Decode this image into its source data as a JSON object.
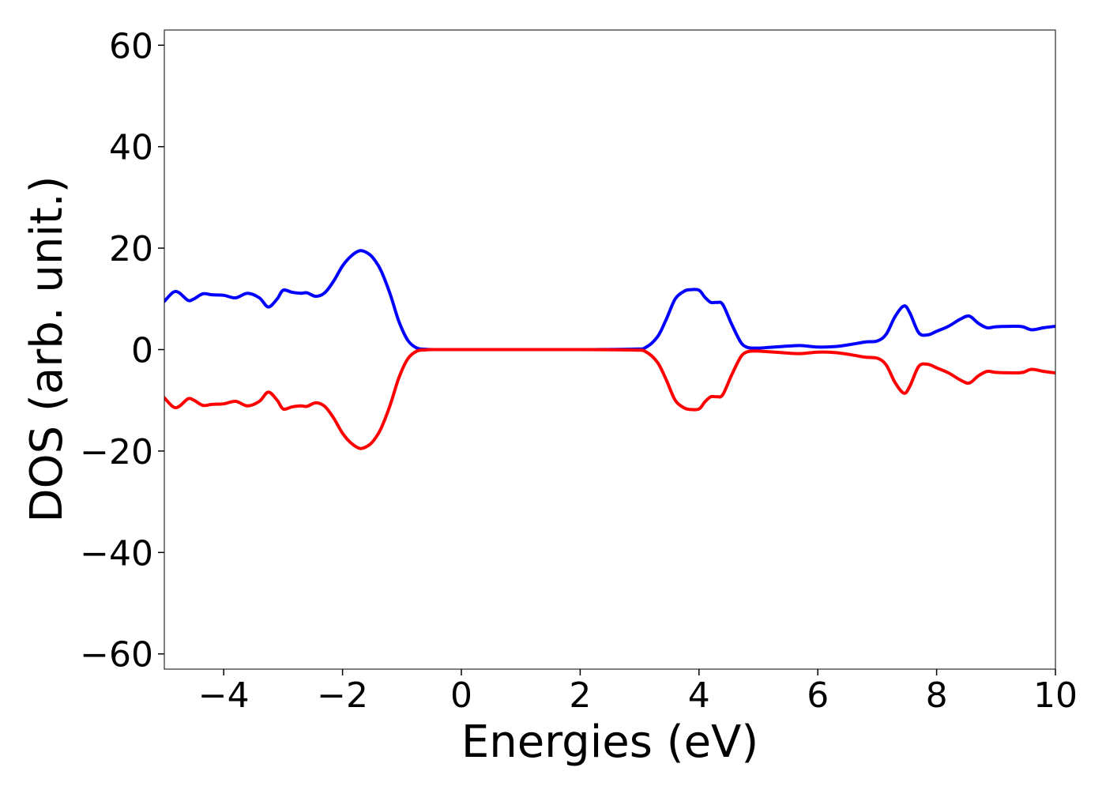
{
  "chart_data": {
    "type": "line",
    "title": "",
    "xlabel": "Energies (eV)",
    "ylabel": "DOS (arb. unit.)",
    "xlim": [
      -5,
      10
    ],
    "ylim": [
      -63,
      63
    ],
    "xticks": [
      -4,
      -2,
      0,
      2,
      4,
      6,
      8,
      10
    ],
    "yticks": [
      -60,
      -40,
      -20,
      0,
      20,
      40,
      60
    ],
    "xtick_labels": [
      "−4",
      "−2",
      "0",
      "2",
      "4",
      "6",
      "8",
      "10"
    ],
    "ytick_labels": [
      "−60",
      "−40",
      "−20",
      "0",
      "20",
      "40",
      "60"
    ],
    "grid": false,
    "legend": "none",
    "series": [
      {
        "color": "#0000ff",
        "x": [
          -5.0,
          -4.85,
          -4.75,
          -4.6,
          -4.5,
          -4.35,
          -4.2,
          -4.0,
          -3.8,
          -3.6,
          -3.4,
          -3.25,
          -3.1,
          -3.0,
          -2.85,
          -2.7,
          -2.6,
          -2.45,
          -2.3,
          -2.15,
          -2.0,
          -1.85,
          -1.7,
          -1.55,
          -1.45,
          -1.35,
          -1.2,
          -1.05,
          -0.9,
          -0.75,
          -0.6,
          -0.45,
          0.0,
          1.0,
          2.0,
          2.9,
          3.1,
          3.3,
          3.45,
          3.6,
          3.75,
          3.85,
          4.0,
          4.1,
          4.2,
          4.3,
          4.4,
          4.55,
          4.7,
          4.8,
          4.9,
          5.0,
          5.15,
          5.4,
          5.7,
          6.0,
          6.3,
          6.55,
          6.8,
          7.0,
          7.15,
          7.3,
          7.45,
          7.55,
          7.7,
          7.85,
          8.0,
          8.2,
          8.4,
          8.55,
          8.7,
          8.85,
          9.0,
          9.3,
          9.45,
          9.6,
          9.8,
          10.0
        ],
        "y": [
          9.5,
          11.3,
          11.2,
          9.7,
          10.0,
          11.0,
          10.8,
          10.7,
          10.2,
          11.1,
          10.2,
          8.4,
          10.0,
          11.7,
          11.3,
          11.1,
          11.2,
          10.5,
          11.2,
          13.5,
          16.5,
          18.5,
          19.5,
          18.8,
          17.5,
          15.5,
          11.0,
          5.5,
          1.8,
          0.3,
          0.05,
          0.0,
          0.0,
          0.0,
          0.0,
          0.1,
          0.4,
          2.5,
          6.0,
          10.0,
          11.5,
          11.8,
          11.7,
          10.3,
          9.3,
          9.3,
          8.9,
          5.0,
          1.5,
          0.5,
          0.3,
          0.3,
          0.4,
          0.6,
          0.8,
          0.5,
          0.6,
          1.0,
          1.5,
          1.7,
          3.0,
          6.5,
          8.6,
          7.2,
          3.3,
          2.9,
          3.6,
          4.6,
          6.0,
          6.6,
          5.2,
          4.3,
          4.5,
          4.6,
          4.5,
          3.9,
          4.3,
          4.6
        ]
      },
      {
        "color": "#ff0000",
        "x": [
          -5.0,
          -4.85,
          -4.75,
          -4.6,
          -4.5,
          -4.35,
          -4.2,
          -4.0,
          -3.8,
          -3.6,
          -3.4,
          -3.25,
          -3.1,
          -3.0,
          -2.85,
          -2.7,
          -2.6,
          -2.45,
          -2.3,
          -2.15,
          -2.0,
          -1.85,
          -1.7,
          -1.55,
          -1.45,
          -1.35,
          -1.2,
          -1.05,
          -0.9,
          -0.75,
          -0.6,
          -0.45,
          0.0,
          1.0,
          2.0,
          2.9,
          3.1,
          3.3,
          3.45,
          3.6,
          3.75,
          3.85,
          4.0,
          4.1,
          4.2,
          4.3,
          4.4,
          4.55,
          4.7,
          4.8,
          4.9,
          5.0,
          5.15,
          5.4,
          5.7,
          6.0,
          6.3,
          6.55,
          6.8,
          7.0,
          7.15,
          7.3,
          7.45,
          7.55,
          7.7,
          7.85,
          8.0,
          8.2,
          8.4,
          8.55,
          8.7,
          8.85,
          9.0,
          9.3,
          9.45,
          9.6,
          9.8,
          10.0
        ],
        "y": [
          -9.5,
          -11.3,
          -11.2,
          -9.7,
          -10.0,
          -11.0,
          -10.8,
          -10.7,
          -10.2,
          -11.1,
          -10.2,
          -8.4,
          -10.0,
          -11.7,
          -11.3,
          -11.1,
          -11.2,
          -10.5,
          -11.2,
          -13.5,
          -16.5,
          -18.5,
          -19.5,
          -18.8,
          -17.5,
          -15.5,
          -11.0,
          -5.5,
          -1.8,
          -0.3,
          -0.05,
          0.0,
          0.0,
          0.0,
          0.0,
          -0.1,
          -0.4,
          -2.5,
          -6.0,
          -10.0,
          -11.5,
          -11.8,
          -11.7,
          -10.3,
          -9.3,
          -9.3,
          -8.9,
          -5.0,
          -1.5,
          -0.5,
          -0.3,
          -0.3,
          -0.4,
          -0.6,
          -0.8,
          -0.5,
          -0.6,
          -1.0,
          -1.5,
          -1.7,
          -3.0,
          -6.5,
          -8.6,
          -7.2,
          -3.3,
          -2.9,
          -3.6,
          -4.6,
          -6.0,
          -6.6,
          -5.2,
          -4.3,
          -4.5,
          -4.6,
          -4.5,
          -3.9,
          -4.3,
          -4.6
        ]
      }
    ]
  }
}
